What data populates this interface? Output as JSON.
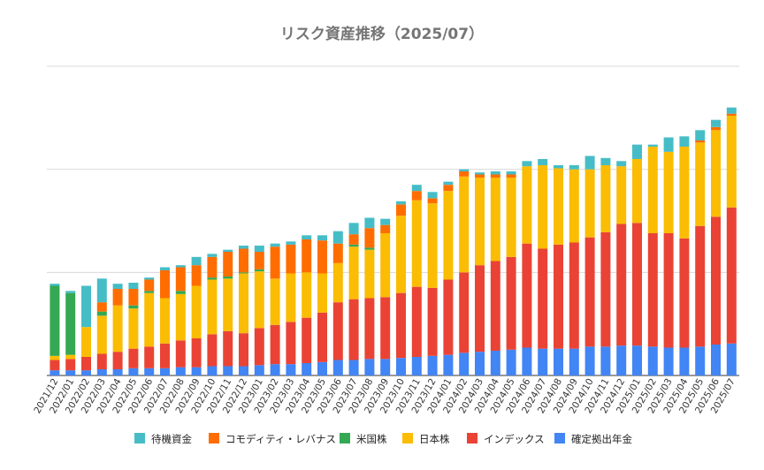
{
  "chart_data": {
    "type": "bar",
    "stacked": true,
    "title": "リスク資産推移（2025/07）",
    "grid": true,
    "legend_position": "bottom",
    "y_tick_labels_shown": false,
    "ylim": [
      0,
      300
    ],
    "categories": [
      "2021/12",
      "2022/01",
      "2022/02",
      "2022/03",
      "2022/04",
      "2022/05",
      "2022/06",
      "2022/07",
      "2022/08",
      "2022/09",
      "2022/10",
      "2022/11",
      "2022/12",
      "2023/01",
      "2023/02",
      "2023/03",
      "2023/04",
      "2023/05",
      "2023/06",
      "2023/07",
      "2023/08",
      "2023/09",
      "2023/10",
      "2023/11",
      "2023/12",
      "2024/01",
      "2024/02",
      "2024/03",
      "2024/04",
      "2024/05",
      "2024/06",
      "2024/07",
      "2024/08",
      "2024/09",
      "2024/10",
      "2024/11",
      "2024/12",
      "2025/01",
      "2025/02",
      "2025/03",
      "2025/04",
      "2025/05",
      "2025/06",
      "2025/07"
    ],
    "series": [
      {
        "name": "確定拠出年金",
        "color": "#4285f4",
        "values": [
          5,
          5,
          5,
          6,
          6,
          7,
          7,
          7,
          8,
          8,
          9,
          9,
          9,
          10,
          11,
          11,
          12,
          13,
          15,
          15,
          16,
          16,
          17,
          18,
          19,
          20,
          22,
          23,
          24,
          25,
          27,
          26,
          26,
          26,
          28,
          28,
          29,
          29,
          28,
          27,
          27,
          28,
          30,
          31
        ]
      },
      {
        "name": "インデックス",
        "color": "#ea4335",
        "values": [
          10,
          11,
          13,
          15,
          17,
          19,
          21,
          24,
          26,
          28,
          31,
          34,
          32,
          36,
          38,
          41,
          44,
          48,
          56,
          59,
          59,
          60,
          63,
          68,
          66,
          73,
          78,
          84,
          87,
          90,
          101,
          97,
          101,
          103,
          106,
          111,
          118,
          119,
          110,
          111,
          106,
          117,
          124,
          132
        ]
      },
      {
        "name": "日本株",
        "color": "#fbbc04",
        "values": [
          4,
          4,
          29,
          37,
          45,
          39,
          52,
          44,
          45,
          51,
          53,
          51,
          58,
          55,
          45,
          47,
          44,
          38,
          38,
          51,
          47,
          62,
          75,
          84,
          82,
          86,
          93,
          85,
          81,
          77,
          75,
          81,
          74,
          71,
          66,
          65,
          56,
          62,
          84,
          79,
          89,
          81,
          84,
          89
        ]
      },
      {
        "name": "米国株",
        "color": "#34a853",
        "values": [
          68,
          60,
          0,
          4,
          0,
          3,
          2,
          0,
          3,
          0,
          2,
          2,
          1,
          2,
          0,
          0,
          0,
          0,
          0,
          2,
          2,
          0,
          0,
          0,
          0,
          0,
          0,
          0,
          0,
          0,
          0,
          0,
          0,
          0,
          0,
          0,
          0,
          0,
          0,
          0,
          0,
          0,
          0,
          0
        ]
      },
      {
        "name": "コモディティ・レバナス",
        "color": "#ff6d01",
        "values": [
          0,
          0,
          0,
          9,
          16,
          16,
          11,
          27,
          23,
          20,
          20,
          24,
          23,
          17,
          31,
          28,
          32,
          32,
          19,
          10,
          19,
          8,
          11,
          9,
          5,
          6,
          5,
          3,
          3,
          3,
          0,
          0,
          0,
          0,
          0,
          0,
          0,
          0,
          0,
          0,
          0,
          2,
          3,
          2
        ]
      },
      {
        "name": "待機資金",
        "color": "#46bdc6",
        "values": [
          2,
          2,
          40,
          23,
          5,
          6,
          2,
          3,
          2,
          8,
          3,
          2,
          3,
          6,
          3,
          3,
          4,
          5,
          12,
          11,
          10,
          6,
          3,
          6,
          6,
          3,
          2,
          2,
          3,
          3,
          5,
          6,
          3,
          4,
          13,
          7,
          5,
          14,
          2,
          14,
          10,
          10,
          7,
          6
        ]
      }
    ]
  }
}
